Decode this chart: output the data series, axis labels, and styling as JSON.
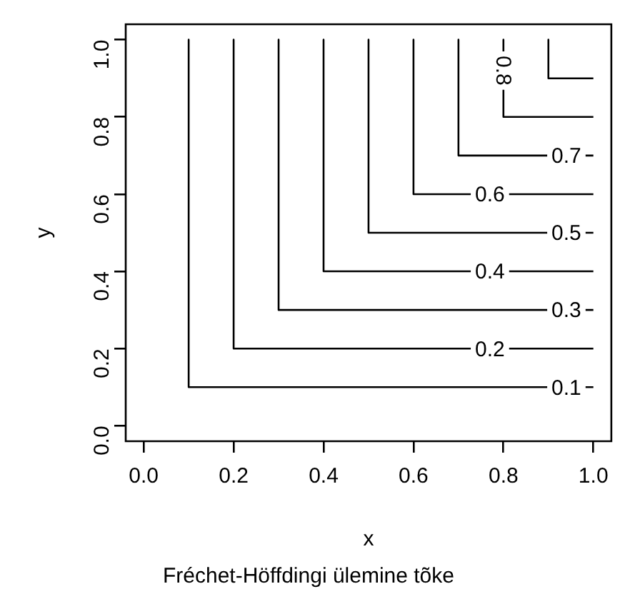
{
  "chart_data": {
    "type": "line",
    "subtitle": "Fréchet-Höffdingi ülemine tõke",
    "xlabel": "x",
    "ylabel": "y",
    "xlim": [
      -0.04,
      1.04
    ],
    "ylim": [
      -0.04,
      1.04
    ],
    "xticks": [
      {
        "value": 0,
        "label": "0.0"
      },
      {
        "value": 0.2,
        "label": "0.2"
      },
      {
        "value": 0.4,
        "label": "0.4"
      },
      {
        "value": 0.6,
        "label": "0.6"
      },
      {
        "value": 0.8,
        "label": "0.8"
      },
      {
        "value": 1.0,
        "label": "1.0"
      }
    ],
    "yticks": [
      {
        "value": 0,
        "label": "0.0"
      },
      {
        "value": 0.2,
        "label": "0.2"
      },
      {
        "value": 0.4,
        "label": "0.4"
      },
      {
        "value": 0.6,
        "label": "0.6"
      },
      {
        "value": 0.8,
        "label": "0.8"
      },
      {
        "value": 1,
        "label": "1.0"
      }
    ],
    "grid": false,
    "legend": false,
    "marker": "none",
    "line_style": "solid",
    "series": [
      {
        "name": "0.1",
        "color": "#000000",
        "x": [
          0.1,
          0.1,
          1
        ],
        "values": [
          1,
          0.1,
          0.1
        ]
      },
      {
        "name": "0.2",
        "color": "#000000",
        "x": [
          0.2,
          0.2,
          1
        ],
        "values": [
          1,
          0.2,
          0.2
        ]
      },
      {
        "name": "0.3",
        "color": "#000000",
        "x": [
          0.3,
          0.3,
          1
        ],
        "values": [
          1,
          0.3,
          0.3
        ]
      },
      {
        "name": "0.4",
        "color": "#000000",
        "x": [
          0.4,
          0.4,
          1
        ],
        "values": [
          1,
          0.4,
          0.4
        ]
      },
      {
        "name": "0.5",
        "color": "#000000",
        "x": [
          0.5,
          0.5,
          1
        ],
        "values": [
          1,
          0.5,
          0.5
        ]
      },
      {
        "name": "0.6",
        "color": "#000000",
        "x": [
          0.6,
          0.6,
          1
        ],
        "values": [
          1,
          0.6,
          0.6
        ]
      },
      {
        "name": "0.7",
        "color": "#000000",
        "x": [
          0.7,
          0.7,
          1
        ],
        "values": [
          1,
          0.7,
          0.7
        ]
      },
      {
        "name": "0.8",
        "color": "#000000",
        "x": [
          0.8,
          0.8,
          1
        ],
        "values": [
          1,
          0.8,
          0.8
        ]
      },
      {
        "color": "#000000",
        "x": [
          0.9,
          0.9,
          1
        ],
        "values": [
          1,
          0.9,
          0.9
        ]
      }
    ]
  }
}
